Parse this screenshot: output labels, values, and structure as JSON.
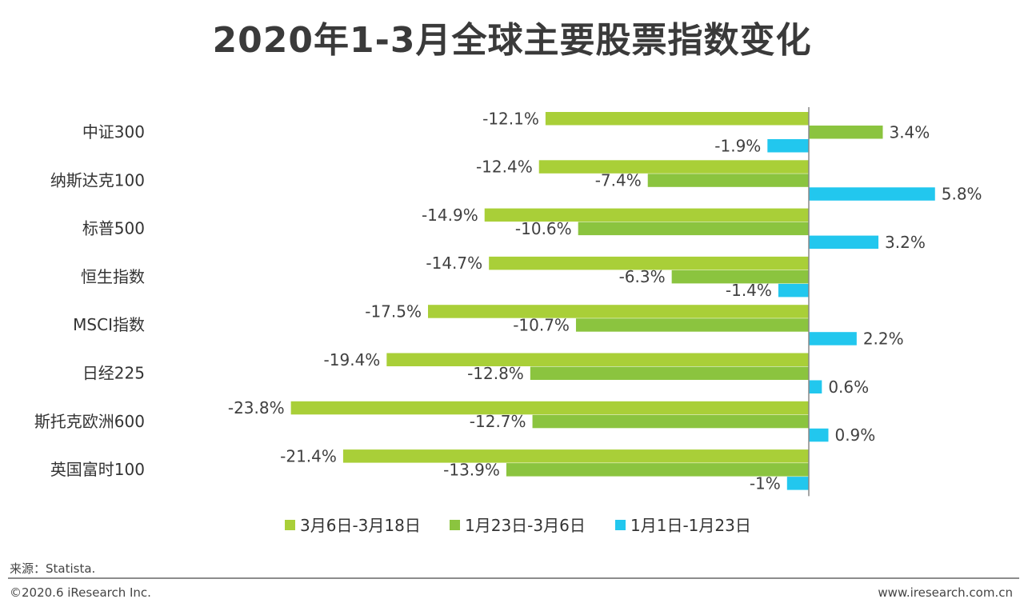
{
  "title": "2020年1-3月全球主要股票指数变化",
  "source": "来源：Statista.",
  "copyright": "©2020.6 iResearch Inc.",
  "website": "www.iresearch.com.cn",
  "chart_data": {
    "type": "bar",
    "orientation": "horizontal",
    "categories": [
      "中证300",
      "纳斯达克100",
      "标普500",
      "恒生指数",
      "MSCI指数",
      "日经225",
      "斯托克欧洲600",
      "英国富时100"
    ],
    "series": [
      {
        "name": "3月6日-3月18日",
        "color": "#a9cf38",
        "values": [
          -12.1,
          -12.4,
          -14.9,
          -14.7,
          -17.5,
          -19.4,
          -23.8,
          -21.4
        ],
        "labels": [
          "-12.1%",
          "-12.4%",
          "-14.9%",
          "-14.7%",
          "-17.5%",
          "-19.4%",
          "-23.8%",
          "-21.4%"
        ]
      },
      {
        "name": "1月23日-3月6日",
        "color": "#8bc43f",
        "values": [
          3.4,
          -7.4,
          -10.6,
          -6.3,
          -10.7,
          -12.8,
          -12.7,
          -13.9
        ],
        "labels": [
          "3.4%",
          "-7.4%",
          "-10.6%",
          "-6.3%",
          "-10.7%",
          "-12.8%",
          "-12.7%",
          "-13.9%"
        ]
      },
      {
        "name": "1月1日-1月23日",
        "color": "#22c7ee",
        "values": [
          -1.9,
          5.8,
          3.2,
          -1.4,
          2.2,
          0.6,
          0.9,
          -1.0
        ],
        "labels": [
          "-1.9%",
          "5.8%",
          "3.2%",
          "-1.4%",
          "2.2%",
          "0.6%",
          "0.9%",
          "-1%"
        ]
      }
    ],
    "unit": "%",
    "legend_position": "bottom",
    "grid": false
  }
}
